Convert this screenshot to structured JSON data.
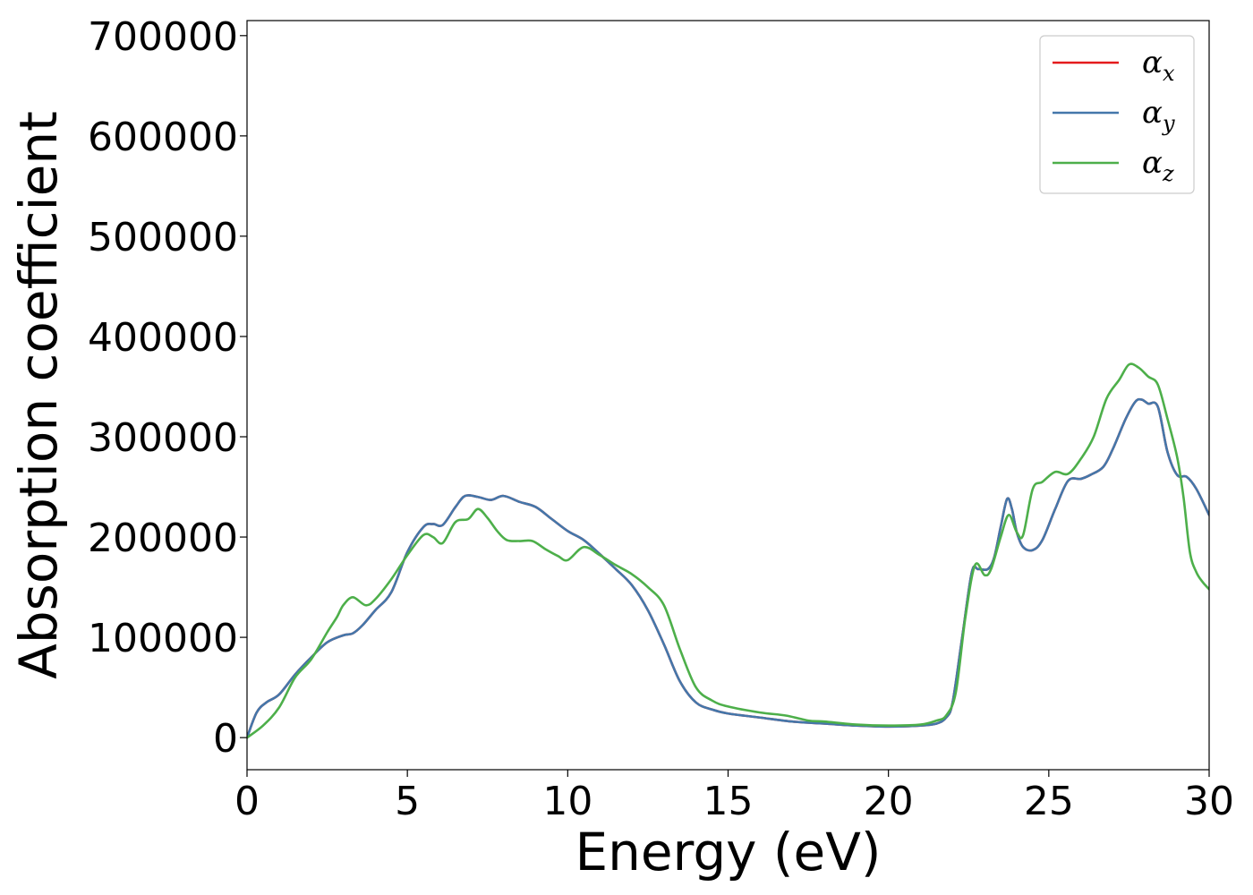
{
  "chart_data": {
    "type": "line",
    "xlabel": "Energy (eV)",
    "ylabel": "Absorption coefficient",
    "xlim": [
      0,
      30
    ],
    "ylim": [
      -32000,
      715000
    ],
    "xticks": [
      0,
      5,
      10,
      15,
      20,
      25,
      30
    ],
    "xtick_labels": [
      "0",
      "5",
      "10",
      "15",
      "20",
      "25",
      "30"
    ],
    "yticks": [
      0,
      100000,
      200000,
      300000,
      400000,
      500000,
      600000,
      700000
    ],
    "ytick_labels": [
      "0",
      "100000",
      "200000",
      "300000",
      "400000",
      "500000",
      "600000",
      "700000"
    ],
    "grid": false,
    "legend_position": "top-right",
    "series": [
      {
        "name": "α",
        "subscript": "x",
        "color": "#e41a1c",
        "x": [
          0,
          0.3,
          0.6,
          1.0,
          1.5,
          2.0,
          2.5,
          3.0,
          3.3,
          3.6,
          4.0,
          4.5,
          5.0,
          5.5,
          5.8,
          6.1,
          6.5,
          6.8,
          7.2,
          7.6,
          8.0,
          8.5,
          9.0,
          9.5,
          10.0,
          10.5,
          11.0,
          11.5,
          12.0,
          12.5,
          13.0,
          13.5,
          14.0,
          14.5,
          15.0,
          16.0,
          17.0,
          18.0,
          19.0,
          20.0,
          21.0,
          21.5,
          21.8,
          22.0,
          22.3,
          22.6,
          22.8,
          23.1,
          23.3,
          23.5,
          23.7,
          23.85,
          24.0,
          24.2,
          24.5,
          24.8,
          25.2,
          25.6,
          26.0,
          26.3,
          26.7,
          27.0,
          27.4,
          27.7,
          27.9,
          28.1,
          28.4,
          28.7,
          29.0,
          29.3,
          29.6,
          30.0
        ],
        "y": [
          0,
          25000,
          35000,
          43000,
          63000,
          80000,
          95000,
          102000,
          104000,
          112000,
          127000,
          145000,
          185000,
          210000,
          213000,
          212000,
          230000,
          241000,
          240000,
          237000,
          241000,
          235000,
          230000,
          218000,
          206000,
          197000,
          183000,
          168000,
          152000,
          127000,
          93000,
          56000,
          35000,
          28000,
          24000,
          20000,
          16000,
          14000,
          12000,
          11000,
          12000,
          14000,
          20000,
          35000,
          100000,
          165000,
          168000,
          168000,
          180000,
          210000,
          238000,
          228000,
          205000,
          190000,
          187000,
          197000,
          228000,
          256000,
          258000,
          262000,
          270000,
          288000,
          318000,
          335000,
          337000,
          333000,
          330000,
          285000,
          262000,
          260000,
          248000,
          222000
        ]
      },
      {
        "name": "α",
        "subscript": "y",
        "color": "#4477aa",
        "x": [
          0,
          0.3,
          0.6,
          1.0,
          1.5,
          2.0,
          2.5,
          3.0,
          3.3,
          3.6,
          4.0,
          4.5,
          5.0,
          5.5,
          5.8,
          6.1,
          6.5,
          6.8,
          7.2,
          7.6,
          8.0,
          8.5,
          9.0,
          9.5,
          10.0,
          10.5,
          11.0,
          11.5,
          12.0,
          12.5,
          13.0,
          13.5,
          14.0,
          14.5,
          15.0,
          16.0,
          17.0,
          18.0,
          19.0,
          20.0,
          21.0,
          21.5,
          21.8,
          22.0,
          22.3,
          22.6,
          22.8,
          23.1,
          23.3,
          23.5,
          23.7,
          23.85,
          24.0,
          24.2,
          24.5,
          24.8,
          25.2,
          25.6,
          26.0,
          26.3,
          26.7,
          27.0,
          27.4,
          27.7,
          27.9,
          28.1,
          28.4,
          28.7,
          29.0,
          29.3,
          29.6,
          30.0
        ],
        "y": [
          0,
          25000,
          35000,
          43000,
          63000,
          80000,
          95000,
          102000,
          104000,
          112000,
          127000,
          145000,
          185000,
          210000,
          213000,
          212000,
          230000,
          241000,
          240000,
          237000,
          241000,
          235000,
          230000,
          218000,
          206000,
          197000,
          183000,
          168000,
          152000,
          127000,
          93000,
          56000,
          35000,
          28000,
          24000,
          20000,
          16000,
          14000,
          12000,
          11000,
          12000,
          14000,
          20000,
          35000,
          100000,
          165000,
          168000,
          168000,
          180000,
          210000,
          238000,
          228000,
          205000,
          190000,
          187000,
          197000,
          228000,
          256000,
          258000,
          262000,
          270000,
          288000,
          318000,
          335000,
          337000,
          333000,
          330000,
          285000,
          262000,
          260000,
          248000,
          222000
        ]
      },
      {
        "name": "α",
        "subscript": "z",
        "color": "#4daf4a",
        "x": [
          0,
          0.5,
          1.0,
          1.5,
          2.0,
          2.5,
          2.8,
          3.0,
          3.3,
          3.7,
          4.0,
          4.5,
          5.0,
          5.5,
          5.8,
          6.1,
          6.5,
          6.9,
          7.2,
          7.5,
          7.8,
          8.1,
          8.5,
          8.9,
          9.3,
          9.7,
          10.0,
          10.5,
          11.0,
          11.5,
          12.0,
          12.5,
          13.0,
          13.5,
          14.0,
          14.5,
          15.0,
          16.0,
          16.8,
          17.5,
          18.0,
          19.0,
          20.0,
          21.0,
          21.5,
          21.8,
          22.1,
          22.4,
          22.7,
          23.0,
          23.2,
          23.5,
          23.75,
          24.0,
          24.2,
          24.5,
          24.8,
          25.2,
          25.6,
          26.0,
          26.4,
          26.8,
          27.2,
          27.5,
          27.8,
          28.1,
          28.4,
          28.7,
          29.0,
          29.2,
          29.4,
          29.6,
          29.8,
          30.0
        ],
        "y": [
          0,
          12000,
          30000,
          60000,
          78000,
          105000,
          120000,
          132000,
          140000,
          132000,
          138000,
          158000,
          182000,
          202000,
          200000,
          194000,
          215000,
          218000,
          228000,
          219000,
          206000,
          197000,
          196000,
          196000,
          188000,
          181000,
          177000,
          190000,
          182000,
          172000,
          163000,
          150000,
          132000,
          88000,
          50000,
          37000,
          31000,
          25000,
          22000,
          17000,
          16000,
          13000,
          12000,
          13000,
          17000,
          22000,
          45000,
          120000,
          172000,
          162000,
          168000,
          200000,
          222000,
          205000,
          202000,
          248000,
          255000,
          265000,
          263000,
          278000,
          300000,
          338000,
          357000,
          372000,
          369000,
          360000,
          352000,
          318000,
          280000,
          240000,
          185000,
          165000,
          155000,
          148000
        ]
      }
    ]
  }
}
